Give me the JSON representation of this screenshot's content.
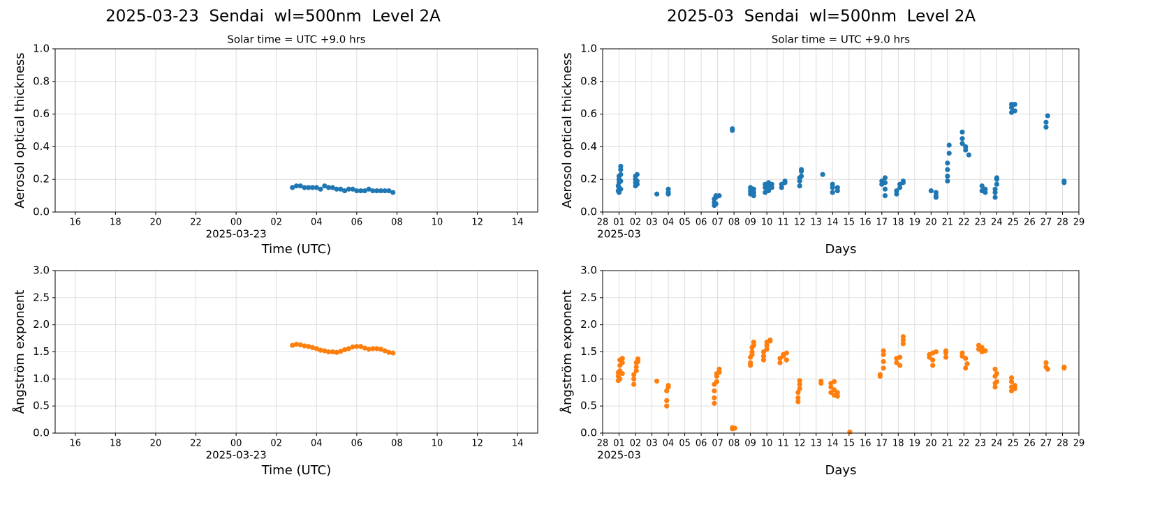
{
  "chart_data": [
    {
      "type": "scatter",
      "title": "2025-03-23  Sendai  wl=500nm  Level 2A",
      "subtitle": "Solar time = UTC +9.0 hrs",
      "xlabel": "Time (UTC)",
      "ylabel": "Aerosol optical thickness",
      "x_date_label": "2025-03-23",
      "xlim": [
        -9,
        15
      ],
      "xticks": [
        {
          "value": -8,
          "label": "16"
        },
        {
          "value": -6,
          "label": "18"
        },
        {
          "value": -4,
          "label": "20"
        },
        {
          "value": -2,
          "label": "22"
        },
        {
          "value": 0,
          "label": "00"
        },
        {
          "value": 2,
          "label": "02"
        },
        {
          "value": 4,
          "label": "04"
        },
        {
          "value": 6,
          "label": "06"
        },
        {
          "value": 8,
          "label": "08"
        },
        10,
        12,
        14
      ],
      "ylim": [
        0,
        1
      ],
      "yticks": [
        {
          "value": 0,
          "label": "0.0"
        },
        0.2,
        0.4,
        0.6,
        0.8,
        {
          "value": 1,
          "label": "1.0"
        }
      ],
      "grid": true,
      "color": "#1f77b4",
      "x": [
        2.8,
        3.0,
        3.2,
        3.4,
        3.6,
        3.8,
        4.0,
        4.2,
        4.4,
        4.6,
        4.8,
        5.0,
        5.2,
        5.4,
        5.6,
        5.8,
        6.0,
        6.2,
        6.4,
        6.6,
        6.8,
        7.0,
        7.2,
        7.4,
        7.6,
        7.8
      ],
      "values": [
        0.15,
        0.16,
        0.16,
        0.15,
        0.15,
        0.15,
        0.15,
        0.14,
        0.16,
        0.15,
        0.15,
        0.14,
        0.14,
        0.13,
        0.14,
        0.14,
        0.13,
        0.13,
        0.13,
        0.14,
        0.13,
        0.13,
        0.13,
        0.13,
        0.13,
        0.12
      ]
    },
    {
      "type": "scatter",
      "title": "2025-03  Sendai  wl=500nm  Level 2A",
      "subtitle": "Solar time = UTC +9.0 hrs",
      "xlabel": "Days",
      "ylabel": "Aerosol optical thickness",
      "x_date_label": "2025-03",
      "xlim": [
        0,
        29
      ],
      "xticks": [
        {
          "value": 0,
          "label": "28"
        },
        {
          "value": 1,
          "label": "01"
        },
        {
          "value": 2,
          "label": "02"
        },
        {
          "value": 3,
          "label": "03"
        },
        {
          "value": 4,
          "label": "04"
        },
        {
          "value": 5,
          "label": "05"
        },
        {
          "value": 6,
          "label": "06"
        },
        {
          "value": 7,
          "label": "07"
        },
        {
          "value": 8,
          "label": "08"
        },
        {
          "value": 9,
          "label": "09"
        },
        10,
        11,
        12,
        13,
        14,
        15,
        16,
        17,
        18,
        19,
        20,
        21,
        22,
        23,
        24,
        25,
        26,
        27,
        28,
        29
      ],
      "ylim": [
        0,
        1
      ],
      "yticks": [
        {
          "value": 0,
          "label": "0.0"
        },
        0.2,
        0.4,
        0.6,
        0.8,
        {
          "value": 1,
          "label": "1.0"
        }
      ],
      "grid": true,
      "color": "#1f77b4",
      "x": [
        1.0,
        1.0,
        1.0,
        1.0,
        1.0,
        1.1,
        1.1,
        1.1,
        1.1,
        1.1,
        0.95,
        0.95,
        2.0,
        2.0,
        2.0,
        2.0,
        2.1,
        2.1,
        2.1,
        3.3,
        4.0,
        4.0,
        4.0,
        6.8,
        6.8,
        6.8,
        6.9,
        6.9,
        6.9,
        7.1,
        7.9,
        7.9,
        9.0,
        9.0,
        9.0,
        9.2,
        9.2,
        9.2,
        9.9,
        9.9,
        9.9,
        10.1,
        10.1,
        10.1,
        10.3,
        10.3,
        10.9,
        10.9,
        11.1,
        11.1,
        12.0,
        12.0,
        12.0,
        12.1,
        12.1,
        12.1,
        13.4,
        14.0,
        14.0,
        14.0,
        14.3,
        14.3,
        17.0,
        17.0,
        17.2,
        17.2,
        17.2,
        17.2,
        17.9,
        17.9,
        18.1,
        18.1,
        18.3,
        18.3,
        20.0,
        20.3,
        20.3,
        20.3,
        21.0,
        21.0,
        21.0,
        21.0,
        21.1,
        21.1,
        21.9,
        21.9,
        21.9,
        22.1,
        22.1,
        22.3,
        23.1,
        23.1,
        23.3,
        23.3,
        23.9,
        23.9,
        23.9,
        24.0,
        24.0,
        24.0,
        24.9,
        24.9,
        24.9,
        25.1,
        25.1,
        27.0,
        27.0,
        27.1,
        28.1,
        28.1
      ],
      "values": [
        0.12,
        0.15,
        0.18,
        0.2,
        0.22,
        0.14,
        0.19,
        0.23,
        0.26,
        0.28,
        0.13,
        0.16,
        0.16,
        0.18,
        0.2,
        0.22,
        0.17,
        0.19,
        0.23,
        0.11,
        0.11,
        0.14,
        0.12,
        0.04,
        0.06,
        0.08,
        0.05,
        0.09,
        0.1,
        0.1,
        0.51,
        0.5,
        0.11,
        0.15,
        0.13,
        0.12,
        0.14,
        0.1,
        0.12,
        0.15,
        0.17,
        0.13,
        0.16,
        0.18,
        0.15,
        0.17,
        0.15,
        0.17,
        0.18,
        0.19,
        0.16,
        0.19,
        0.21,
        0.22,
        0.25,
        0.26,
        0.23,
        0.12,
        0.15,
        0.17,
        0.13,
        0.15,
        0.17,
        0.19,
        0.1,
        0.14,
        0.18,
        0.21,
        0.11,
        0.13,
        0.15,
        0.17,
        0.18,
        0.19,
        0.13,
        0.1,
        0.12,
        0.09,
        0.19,
        0.22,
        0.26,
        0.3,
        0.36,
        0.41,
        0.42,
        0.45,
        0.49,
        0.4,
        0.38,
        0.35,
        0.13,
        0.16,
        0.12,
        0.14,
        0.09,
        0.12,
        0.14,
        0.17,
        0.2,
        0.21,
        0.61,
        0.64,
        0.66,
        0.62,
        0.66,
        0.52,
        0.55,
        0.59,
        0.19,
        0.18
      ]
    },
    {
      "type": "scatter",
      "xlabel": "Time (UTC)",
      "ylabel": "Ångström exponent",
      "x_date_label": "2025-03-23",
      "xlim": [
        -9,
        15
      ],
      "xticks": [
        {
          "value": -8,
          "label": "16"
        },
        {
          "value": -6,
          "label": "18"
        },
        {
          "value": -4,
          "label": "20"
        },
        {
          "value": -2,
          "label": "22"
        },
        {
          "value": 0,
          "label": "00"
        },
        {
          "value": 2,
          "label": "02"
        },
        {
          "value": 4,
          "label": "04"
        },
        {
          "value": 6,
          "label": "06"
        },
        {
          "value": 8,
          "label": "08"
        },
        10,
        12,
        14
      ],
      "ylim": [
        0,
        3
      ],
      "yticks": [
        {
          "value": 0,
          "label": "0.0"
        },
        0.5,
        {
          "value": 1,
          "label": "1.0"
        },
        1.5,
        {
          "value": 2,
          "label": "2.0"
        },
        2.5,
        {
          "value": 3,
          "label": "3.0"
        }
      ],
      "grid": true,
      "color": "#ff7f0e",
      "x": [
        2.8,
        3.0,
        3.2,
        3.4,
        3.6,
        3.8,
        4.0,
        4.2,
        4.4,
        4.6,
        4.8,
        5.0,
        5.2,
        5.4,
        5.6,
        5.8,
        6.0,
        6.2,
        6.4,
        6.6,
        6.8,
        7.0,
        7.2,
        7.4,
        7.6,
        7.8
      ],
      "values": [
        1.62,
        1.64,
        1.63,
        1.61,
        1.6,
        1.58,
        1.56,
        1.53,
        1.52,
        1.5,
        1.5,
        1.49,
        1.51,
        1.54,
        1.56,
        1.59,
        1.6,
        1.6,
        1.57,
        1.55,
        1.56,
        1.56,
        1.55,
        1.52,
        1.49,
        1.48
      ]
    },
    {
      "type": "scatter",
      "xlabel": "Days",
      "ylabel": "Ångström exponent",
      "x_date_label": "2025-03",
      "xlim": [
        0,
        29
      ],
      "xticks": [
        {
          "value": 0,
          "label": "28"
        },
        {
          "value": 1,
          "label": "01"
        },
        {
          "value": 2,
          "label": "02"
        },
        {
          "value": 3,
          "label": "03"
        },
        {
          "value": 4,
          "label": "04"
        },
        {
          "value": 5,
          "label": "05"
        },
        {
          "value": 6,
          "label": "06"
        },
        {
          "value": 7,
          "label": "07"
        },
        {
          "value": 8,
          "label": "08"
        },
        {
          "value": 9,
          "label": "09"
        },
        10,
        11,
        12,
        13,
        14,
        15,
        16,
        17,
        18,
        19,
        20,
        21,
        22,
        23,
        24,
        25,
        26,
        27,
        28,
        29
      ],
      "ylim": [
        0,
        3
      ],
      "yticks": [
        {
          "value": 0,
          "label": "0.0"
        },
        0.5,
        {
          "value": 1,
          "label": "1.0"
        },
        1.5,
        {
          "value": 2,
          "label": "2.0"
        },
        2.5,
        {
          "value": 3,
          "label": "3.0"
        }
      ],
      "grid": true,
      "color": "#ff7f0e",
      "x": [
        0.95,
        0.95,
        0.95,
        1.05,
        1.05,
        1.05,
        1.05,
        1.2,
        1.2,
        1.2,
        1.9,
        1.9,
        1.9,
        2.05,
        2.05,
        2.05,
        2.15,
        2.15,
        3.3,
        3.9,
        3.9,
        3.9,
        4.0,
        4.0,
        6.8,
        6.8,
        6.8,
        6.8,
        6.95,
        6.95,
        6.95,
        7.1,
        7.1,
        7.9,
        7.9,
        8.05,
        9.0,
        9.0,
        9.0,
        9.1,
        9.1,
        9.1,
        9.2,
        9.2,
        9.8,
        9.8,
        9.8,
        10.0,
        10.0,
        10.0,
        10.2,
        10.2,
        10.8,
        10.8,
        11.0,
        11.0,
        11.2,
        11.2,
        11.9,
        11.9,
        11.9,
        12.0,
        12.0,
        12.0,
        13.3,
        13.3,
        13.9,
        13.9,
        13.9,
        14.1,
        14.1,
        14.1,
        14.3,
        14.3,
        15.05,
        16.9,
        16.9,
        17.1,
        17.1,
        17.1,
        17.1,
        17.9,
        17.9,
        18.1,
        18.1,
        18.3,
        18.3,
        18.3,
        19.9,
        19.9,
        20.1,
        20.1,
        20.1,
        20.3,
        20.9,
        20.9,
        20.9,
        21.9,
        21.9,
        22.1,
        22.1,
        22.2,
        22.9,
        22.9,
        23.1,
        23.1,
        23.3,
        23.9,
        23.9,
        23.9,
        23.9,
        24.0,
        24.0,
        24.9,
        24.9,
        24.9,
        24.9,
        25.1,
        25.1,
        27.0,
        27.0,
        27.1,
        28.1,
        28.1
      ],
      "values": [
        0.97,
        1.05,
        1.12,
        1.0,
        1.15,
        1.25,
        1.35,
        1.1,
        1.3,
        1.38,
        0.9,
        1.0,
        1.08,
        1.15,
        1.22,
        1.3,
        1.32,
        1.37,
        0.96,
        0.5,
        0.6,
        0.78,
        0.85,
        0.88,
        0.55,
        0.65,
        0.78,
        0.9,
        0.95,
        1.05,
        1.1,
        1.12,
        1.18,
        0.1,
        0.08,
        0.09,
        1.25,
        1.3,
        1.4,
        1.45,
        1.5,
        1.58,
        1.62,
        1.68,
        1.35,
        1.42,
        1.5,
        1.55,
        1.62,
        1.68,
        1.7,
        1.72,
        1.3,
        1.38,
        1.42,
        1.45,
        1.35,
        1.48,
        0.58,
        0.65,
        0.75,
        0.82,
        0.9,
        0.97,
        0.92,
        0.96,
        0.75,
        0.85,
        0.92,
        0.7,
        0.8,
        0.95,
        0.68,
        0.75,
        0.02,
        1.05,
        1.08,
        1.2,
        1.32,
        1.45,
        1.52,
        1.3,
        1.38,
        1.25,
        1.4,
        1.65,
        1.72,
        1.78,
        1.45,
        1.4,
        1.25,
        1.35,
        1.48,
        1.5,
        1.4,
        1.48,
        1.52,
        1.48,
        1.42,
        1.38,
        1.2,
        1.28,
        1.55,
        1.62,
        1.5,
        1.58,
        1.52,
        0.85,
        0.92,
        1.05,
        1.18,
        0.95,
        1.1,
        0.78,
        0.85,
        0.95,
        1.02,
        0.82,
        0.88,
        1.3,
        1.22,
        1.18,
        1.22,
        1.2
      ]
    }
  ]
}
